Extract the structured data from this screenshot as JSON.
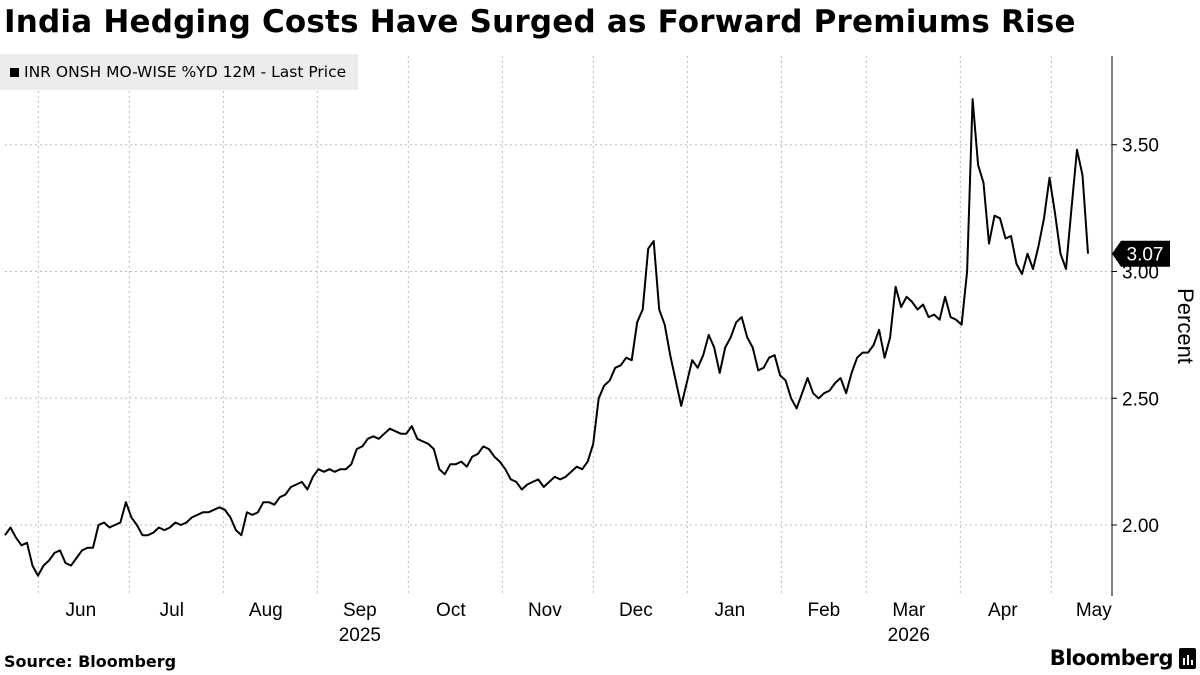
{
  "chart_data": {
    "type": "line",
    "title": "India Hedging Costs Have Surged as Forward Premiums Rise",
    "legend": "top-left",
    "ylabel": "Percent",
    "ylim": [
      1.72,
      3.85
    ],
    "yticks": [
      2.0,
      2.5,
      3.0,
      3.5
    ],
    "ytick_labels": [
      "2.00",
      "2.50",
      "3.00",
      "3.50"
    ],
    "grid": true,
    "x_start": "2025-05-21",
    "x_end": "2026-05-21",
    "month_labels": [
      {
        "label": "Jun",
        "date": "2025-06-15"
      },
      {
        "label": "Jul",
        "date": "2025-07-15"
      },
      {
        "label": "Aug",
        "date": "2025-08-15"
      },
      {
        "label": "Sep",
        "date": "2025-09-15"
      },
      {
        "label": "Oct",
        "date": "2025-10-15"
      },
      {
        "label": "Nov",
        "date": "2025-11-15"
      },
      {
        "label": "Dec",
        "date": "2025-12-15"
      },
      {
        "label": "Jan",
        "date": "2026-01-15"
      },
      {
        "label": "Feb",
        "date": "2026-02-15"
      },
      {
        "label": "Mar",
        "date": "2026-03-15"
      },
      {
        "label": "Apr",
        "date": "2026-04-15"
      },
      {
        "label": "May",
        "date": "2026-05-15"
      }
    ],
    "year_labels": [
      {
        "label": "2025",
        "date": "2025-09-15"
      },
      {
        "label": "2026",
        "date": "2026-03-15"
      }
    ],
    "last_value_label": "3.07",
    "series": [
      {
        "name": "INR ONSH MO-WISE %YD 12M - Last Price",
        "color": "#000000",
        "points": [
          [
            "2025-05-21",
            1.96
          ],
          [
            "2025-05-23",
            1.99
          ],
          [
            "2025-05-25",
            1.95
          ],
          [
            "2025-05-27",
            1.92
          ],
          [
            "2025-05-29",
            1.93
          ],
          [
            "2025-05-31",
            1.84
          ],
          [
            "2025-06-02",
            1.8
          ],
          [
            "2025-06-04",
            1.84
          ],
          [
            "2025-06-06",
            1.86
          ],
          [
            "2025-06-08",
            1.89
          ],
          [
            "2025-06-10",
            1.9
          ],
          [
            "2025-06-12",
            1.85
          ],
          [
            "2025-06-14",
            1.84
          ],
          [
            "2025-06-16",
            1.87
          ],
          [
            "2025-06-18",
            1.9
          ],
          [
            "2025-06-20",
            1.91
          ],
          [
            "2025-06-22",
            1.91
          ],
          [
            "2025-06-24",
            2.0
          ],
          [
            "2025-06-26",
            2.01
          ],
          [
            "2025-06-28",
            1.99
          ],
          [
            "2025-06-30",
            2.0
          ],
          [
            "2025-07-02",
            2.01
          ],
          [
            "2025-07-04",
            2.09
          ],
          [
            "2025-07-06",
            2.03
          ],
          [
            "2025-07-08",
            2.0
          ],
          [
            "2025-07-10",
            1.96
          ],
          [
            "2025-07-12",
            1.96
          ],
          [
            "2025-07-14",
            1.97
          ],
          [
            "2025-07-16",
            1.99
          ],
          [
            "2025-07-18",
            1.98
          ],
          [
            "2025-07-20",
            1.99
          ],
          [
            "2025-07-22",
            2.01
          ],
          [
            "2025-07-24",
            2.0
          ],
          [
            "2025-07-26",
            2.01
          ],
          [
            "2025-07-28",
            2.03
          ],
          [
            "2025-07-30",
            2.04
          ],
          [
            "2025-08-01",
            2.05
          ],
          [
            "2025-08-03",
            2.05
          ],
          [
            "2025-08-05",
            2.06
          ],
          [
            "2025-08-07",
            2.07
          ],
          [
            "2025-08-09",
            2.06
          ],
          [
            "2025-08-11",
            2.03
          ],
          [
            "2025-08-13",
            1.98
          ],
          [
            "2025-08-15",
            1.96
          ],
          [
            "2025-08-17",
            2.05
          ],
          [
            "2025-08-19",
            2.04
          ],
          [
            "2025-08-21",
            2.05
          ],
          [
            "2025-08-23",
            2.09
          ],
          [
            "2025-08-25",
            2.09
          ],
          [
            "2025-08-27",
            2.08
          ],
          [
            "2025-08-29",
            2.11
          ],
          [
            "2025-08-31",
            2.12
          ],
          [
            "2025-09-02",
            2.15
          ],
          [
            "2025-09-04",
            2.16
          ],
          [
            "2025-09-06",
            2.17
          ],
          [
            "2025-09-08",
            2.14
          ],
          [
            "2025-09-10",
            2.19
          ],
          [
            "2025-09-12",
            2.22
          ],
          [
            "2025-09-14",
            2.21
          ],
          [
            "2025-09-16",
            2.22
          ],
          [
            "2025-09-18",
            2.21
          ],
          [
            "2025-09-20",
            2.22
          ],
          [
            "2025-09-22",
            2.22
          ],
          [
            "2025-09-24",
            2.24
          ],
          [
            "2025-09-26",
            2.3
          ],
          [
            "2025-09-28",
            2.31
          ],
          [
            "2025-09-30",
            2.34
          ],
          [
            "2025-10-02",
            2.35
          ],
          [
            "2025-10-04",
            2.34
          ],
          [
            "2025-10-06",
            2.36
          ],
          [
            "2025-10-08",
            2.38
          ],
          [
            "2025-10-10",
            2.37
          ],
          [
            "2025-10-12",
            2.36
          ],
          [
            "2025-10-14",
            2.36
          ],
          [
            "2025-10-16",
            2.39
          ],
          [
            "2025-10-18",
            2.34
          ],
          [
            "2025-10-20",
            2.33
          ],
          [
            "2025-10-22",
            2.32
          ],
          [
            "2025-10-24",
            2.3
          ],
          [
            "2025-10-26",
            2.22
          ],
          [
            "2025-10-28",
            2.2
          ],
          [
            "2025-10-30",
            2.24
          ],
          [
            "2025-11-01",
            2.24
          ],
          [
            "2025-11-03",
            2.25
          ],
          [
            "2025-11-05",
            2.23
          ],
          [
            "2025-11-07",
            2.27
          ],
          [
            "2025-11-09",
            2.28
          ],
          [
            "2025-11-11",
            2.31
          ],
          [
            "2025-11-13",
            2.3
          ],
          [
            "2025-11-15",
            2.27
          ],
          [
            "2025-11-17",
            2.25
          ],
          [
            "2025-11-19",
            2.22
          ],
          [
            "2025-11-21",
            2.18
          ],
          [
            "2025-11-23",
            2.17
          ],
          [
            "2025-11-25",
            2.14
          ],
          [
            "2025-11-27",
            2.16
          ],
          [
            "2025-11-29",
            2.17
          ],
          [
            "2025-12-01",
            2.18
          ],
          [
            "2025-12-03",
            2.15
          ],
          [
            "2025-12-05",
            2.17
          ],
          [
            "2025-12-07",
            2.19
          ],
          [
            "2025-12-09",
            2.18
          ],
          [
            "2025-12-11",
            2.19
          ],
          [
            "2025-12-13",
            2.21
          ],
          [
            "2025-12-15",
            2.23
          ],
          [
            "2025-12-17",
            2.22
          ],
          [
            "2025-12-19",
            2.25
          ],
          [
            "2025-12-21",
            2.32
          ],
          [
            "2025-12-23",
            2.5
          ],
          [
            "2025-12-25",
            2.55
          ],
          [
            "2025-12-27",
            2.57
          ],
          [
            "2025-12-29",
            2.62
          ],
          [
            "2025-12-31",
            2.63
          ],
          [
            "2026-01-02",
            2.66
          ],
          [
            "2026-01-04",
            2.65
          ],
          [
            "2026-01-06",
            2.8
          ],
          [
            "2026-01-08",
            2.85
          ],
          [
            "2026-01-10",
            3.09
          ],
          [
            "2026-01-12",
            3.12
          ],
          [
            "2026-01-14",
            2.85
          ],
          [
            "2026-01-16",
            2.79
          ],
          [
            "2026-01-18",
            2.67
          ],
          [
            "2026-01-20",
            2.57
          ],
          [
            "2026-01-22",
            2.47
          ],
          [
            "2026-01-24",
            2.56
          ],
          [
            "2026-01-26",
            2.65
          ],
          [
            "2026-01-28",
            2.62
          ],
          [
            "2026-01-30",
            2.67
          ],
          [
            "2026-02-01",
            2.75
          ],
          [
            "2026-02-03",
            2.7
          ],
          [
            "2026-02-05",
            2.6
          ],
          [
            "2026-02-07",
            2.7
          ],
          [
            "2026-02-09",
            2.74
          ],
          [
            "2026-02-11",
            2.8
          ],
          [
            "2026-02-13",
            2.82
          ],
          [
            "2026-02-15",
            2.74
          ],
          [
            "2026-02-17",
            2.7
          ],
          [
            "2026-02-19",
            2.61
          ],
          [
            "2026-02-21",
            2.62
          ],
          [
            "2026-02-23",
            2.66
          ],
          [
            "2026-02-25",
            2.67
          ],
          [
            "2026-02-27",
            2.59
          ],
          [
            "2026-03-01",
            2.57
          ],
          [
            "2026-03-03",
            2.5
          ],
          [
            "2026-03-05",
            2.46
          ],
          [
            "2026-03-07",
            2.52
          ],
          [
            "2026-03-09",
            2.58
          ],
          [
            "2026-03-11",
            2.52
          ],
          [
            "2026-03-13",
            2.5
          ],
          [
            "2026-03-15",
            2.52
          ],
          [
            "2026-03-17",
            2.53
          ],
          [
            "2026-03-19",
            2.56
          ],
          [
            "2026-03-21",
            2.58
          ],
          [
            "2026-03-23",
            2.52
          ],
          [
            "2026-03-25",
            2.6
          ],
          [
            "2026-03-27",
            2.66
          ],
          [
            "2026-03-29",
            2.68
          ],
          [
            "2026-03-31",
            2.68
          ],
          [
            "2026-04-02",
            2.71
          ],
          [
            "2026-04-04",
            2.77
          ],
          [
            "2026-04-06",
            2.66
          ],
          [
            "2026-04-08",
            2.74
          ],
          [
            "2026-04-10",
            2.94
          ],
          [
            "2026-04-12",
            2.86
          ],
          [
            "2026-04-14",
            2.9
          ],
          [
            "2026-04-16",
            2.88
          ],
          [
            "2026-04-18",
            2.85
          ],
          [
            "2026-04-20",
            2.87
          ],
          [
            "2026-04-22",
            2.82
          ],
          [
            "2026-04-24",
            2.83
          ],
          [
            "2026-04-26",
            2.81
          ],
          [
            "2026-04-28",
            2.9
          ],
          [
            "2026-04-30",
            2.82
          ],
          [
            "2026-05-02",
            2.81
          ],
          [
            "2026-05-03",
            2.79
          ],
          [
            "2026-05-04",
            3.0
          ],
          [
            "2026-05-05",
            3.68
          ],
          [
            "2026-05-06",
            3.42
          ],
          [
            "2026-05-07",
            3.35
          ],
          [
            "2026-05-08",
            3.11
          ],
          [
            "2026-05-09",
            3.22
          ],
          [
            "2026-05-10",
            3.21
          ],
          [
            "2026-05-11",
            3.13
          ],
          [
            "2026-05-12",
            3.14
          ],
          [
            "2026-05-13",
            3.03
          ],
          [
            "2026-05-14",
            2.99
          ],
          [
            "2026-05-15",
            3.07
          ],
          [
            "2026-05-16",
            3.01
          ],
          [
            "2026-05-17",
            3.1
          ],
          [
            "2026-05-18",
            3.21
          ],
          [
            "2026-05-19",
            3.37
          ],
          [
            "2026-05-19",
            3.23
          ],
          [
            "2026-05-20",
            3.07
          ],
          [
            "2026-05-20",
            3.01
          ],
          [
            "2026-05-20",
            3.25
          ],
          [
            "2026-05-21",
            3.48
          ],
          [
            "2026-05-21",
            3.38
          ],
          [
            "2026-05-21",
            3.07
          ]
        ]
      }
    ]
  },
  "source_label": "Source: Bloomberg",
  "brand_label": "Bloomberg"
}
